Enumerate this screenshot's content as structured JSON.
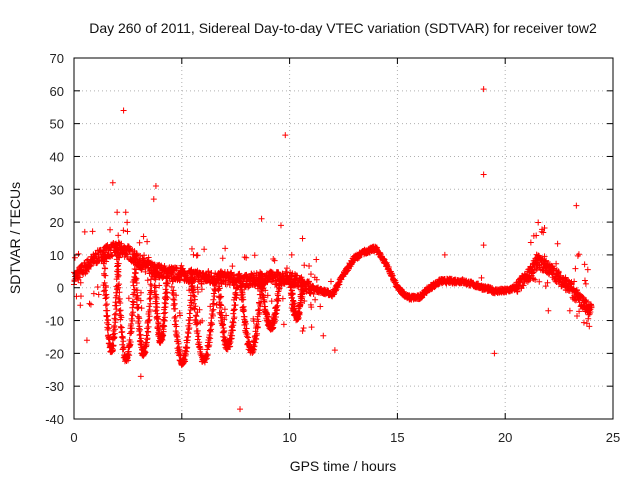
{
  "chart_data": {
    "type": "scatter",
    "title": "Day 260 of 2011, Sidereal Day-to-day VTEC variation (SDTVAR) for receiver tow2",
    "xlabel": "GPS time / hours",
    "ylabel": "SDTVAR / TECUs",
    "xlim": [
      0,
      25
    ],
    "ylim": [
      -40,
      70
    ],
    "xticks": [
      "0",
      "5",
      "10",
      "15",
      "20",
      "25"
    ],
    "yticks": [
      "-40",
      "-30",
      "-20",
      "-10",
      "0",
      "10",
      "20",
      "30",
      "40",
      "50",
      "60",
      "70"
    ],
    "grid": true,
    "marker": "+",
    "colors": {
      "series": "#ff0000",
      "grid": "#b0b0b0",
      "axis": "#000000"
    },
    "series": [
      {
        "name": "SDTVAR",
        "trend_x": [
          0,
          0.5,
          1,
          1.5,
          2,
          2.5,
          3,
          3.5,
          4,
          5,
          6,
          7,
          8,
          9,
          10,
          11,
          12,
          12.5,
          13,
          13.5,
          14,
          14.5,
          15,
          15.5,
          16,
          16.5,
          17,
          18,
          19,
          19.5,
          20,
          20.5,
          21,
          21.5,
          22,
          22.5,
          23,
          23.5,
          24
        ],
        "trend_y": [
          3,
          6,
          9,
          11,
          12,
          11,
          8,
          6,
          5,
          4,
          3,
          3,
          2,
          3,
          3,
          0,
          -2,
          4,
          9,
          11,
          12,
          7,
          0,
          -3,
          -3,
          0,
          2,
          2,
          0,
          -1,
          -1,
          0,
          3,
          8,
          6,
          3,
          0,
          -4,
          -7
        ],
        "outliers_x": [
          0.5,
          0.6,
          1.8,
          2.0,
          2.3,
          2.4,
          3.1,
          3.7,
          3.8,
          7.7,
          8.7,
          9.6,
          9.8,
          10.1,
          10.6,
          12.1,
          17.2,
          18.9,
          19.0,
          19.0,
          19.0,
          19.5,
          22.0,
          23.0,
          23.3
        ],
        "outliers_y": [
          17,
          -16,
          32,
          23,
          54,
          23,
          -27,
          27,
          31,
          -37,
          21,
          19,
          46.5,
          10,
          15,
          -19,
          10,
          3,
          60.5,
          34.5,
          13,
          -20,
          -7,
          -7,
          25
        ],
        "dips": [
          {
            "x": 1.7,
            "min": -19,
            "width": 0.7
          },
          {
            "x": 2.4,
            "min": -22,
            "width": 0.9
          },
          {
            "x": 3.2,
            "min": -20,
            "width": 0.8
          },
          {
            "x": 4.0,
            "min": -16,
            "width": 0.6
          },
          {
            "x": 5.0,
            "min": -23,
            "width": 1.0
          },
          {
            "x": 6.0,
            "min": -22,
            "width": 1.1
          },
          {
            "x": 7.1,
            "min": -18,
            "width": 0.9
          },
          {
            "x": 8.2,
            "min": -19,
            "width": 1.0
          },
          {
            "x": 9.1,
            "min": -12,
            "width": 0.9
          },
          {
            "x": 10.3,
            "min": -9,
            "width": 0.6
          }
        ]
      }
    ]
  }
}
